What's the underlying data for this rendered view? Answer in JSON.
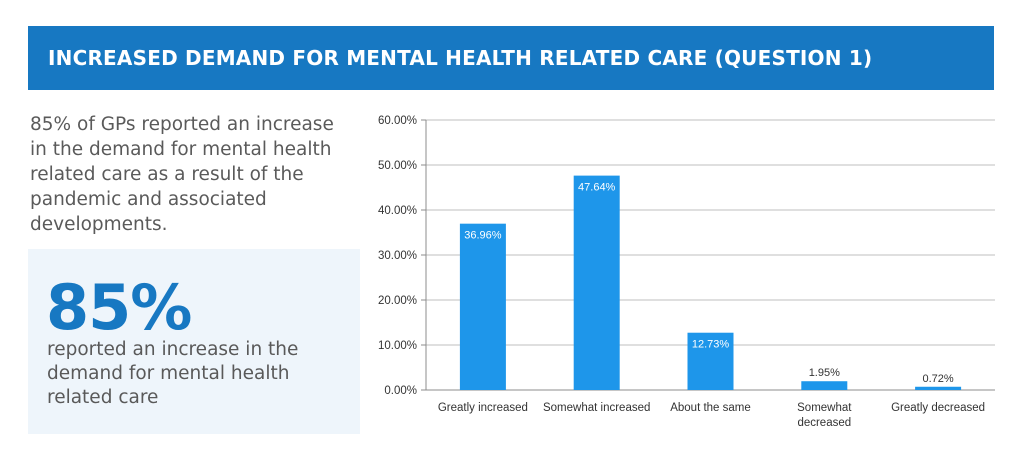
{
  "header": {
    "title": "INCREASED DEMAND FOR MENTAL HEALTH RELATED CARE (QUESTION 1)"
  },
  "intro_text": "85% of GPs reported an increase in the demand for mental health related care as a result of the pandemic and associated developments.",
  "highlight": {
    "value": "85%",
    "description": "reported an increase in the demand for mental health related care"
  },
  "colors": {
    "banner": "#1778c2",
    "bar": "#1e96ea",
    "highlight_box": "#eef5fb"
  },
  "chart_data": {
    "type": "bar",
    "categories": [
      [
        "Greatly increased"
      ],
      [
        "Somewhat increased"
      ],
      [
        "About the same"
      ],
      [
        "Somewhat",
        "decreased"
      ],
      [
        "Greatly decreased"
      ]
    ],
    "values": [
      36.96,
      47.64,
      12.73,
      1.95,
      0.72
    ],
    "value_labels": [
      "36.96%",
      "47.64%",
      "12.73%",
      "1.95%",
      "0.72%"
    ],
    "ylim": [
      0,
      60
    ],
    "yticks": [
      0,
      10,
      20,
      30,
      40,
      50,
      60
    ],
    "ytick_labels": [
      "0.00%",
      "10.00%",
      "20.00%",
      "30.00%",
      "40.00%",
      "50.00%",
      "60.00%"
    ],
    "grid": true
  }
}
